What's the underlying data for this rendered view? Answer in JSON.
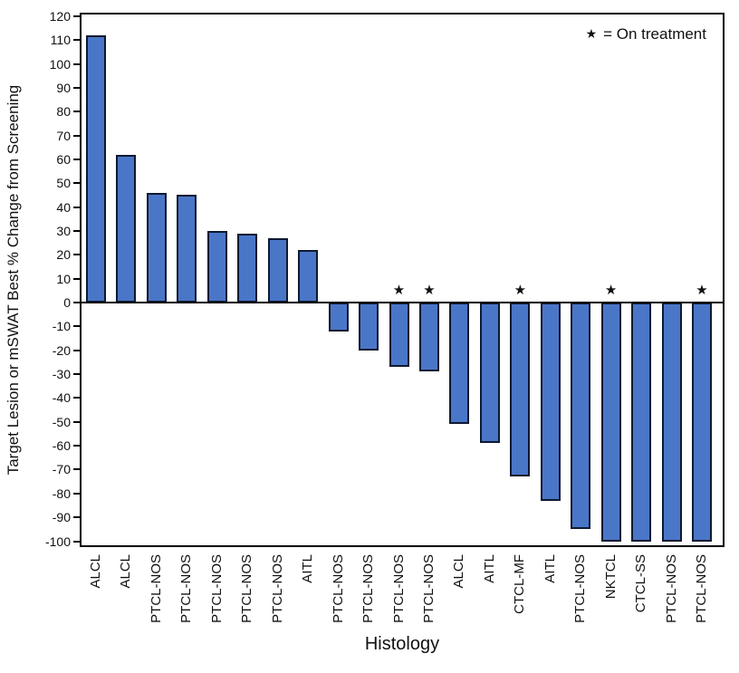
{
  "chart_data": {
    "type": "bar",
    "title": "",
    "xlabel": "Histology",
    "ylabel": "Target Lesion or mSWAT Best % Change from Screening",
    "legend_symbol": "★",
    "legend_note": "= On treatment",
    "ylim": [
      -100,
      120
    ],
    "ytick_step": 10,
    "grid": "off",
    "legend_position": "top-right",
    "categories": [
      "ALCL",
      "ALCL",
      "PTCL-NOS",
      "PTCL-NOS",
      "PTCL-NOS",
      "PTCL-NOS",
      "PTCL-NOS",
      "AITL",
      "PTCL-NOS",
      "PTCL-NOS",
      "PTCL-NOS",
      "PTCL-NOS",
      "ALCL",
      "AITL",
      "CTCL-MF",
      "AITL",
      "PTCL-NOS",
      "NKTCL",
      "CTCL-SS",
      "PTCL-NOS",
      "PTCL-NOS"
    ],
    "values": [
      112,
      62,
      46,
      45,
      30,
      29,
      27,
      22,
      -12,
      -20,
      -27,
      -29,
      -51,
      -59,
      -73,
      -83,
      -95,
      -100,
      -100,
      -100,
      -100
    ],
    "on_treatment": [
      false,
      false,
      false,
      false,
      false,
      false,
      false,
      false,
      false,
      false,
      true,
      true,
      false,
      false,
      true,
      false,
      false,
      true,
      false,
      false,
      true
    ],
    "colors": {
      "bar_fill": "#4A76C8",
      "bar_border": "#0E1930",
      "axis": "#000000",
      "text": "#1A1A1A"
    }
  }
}
